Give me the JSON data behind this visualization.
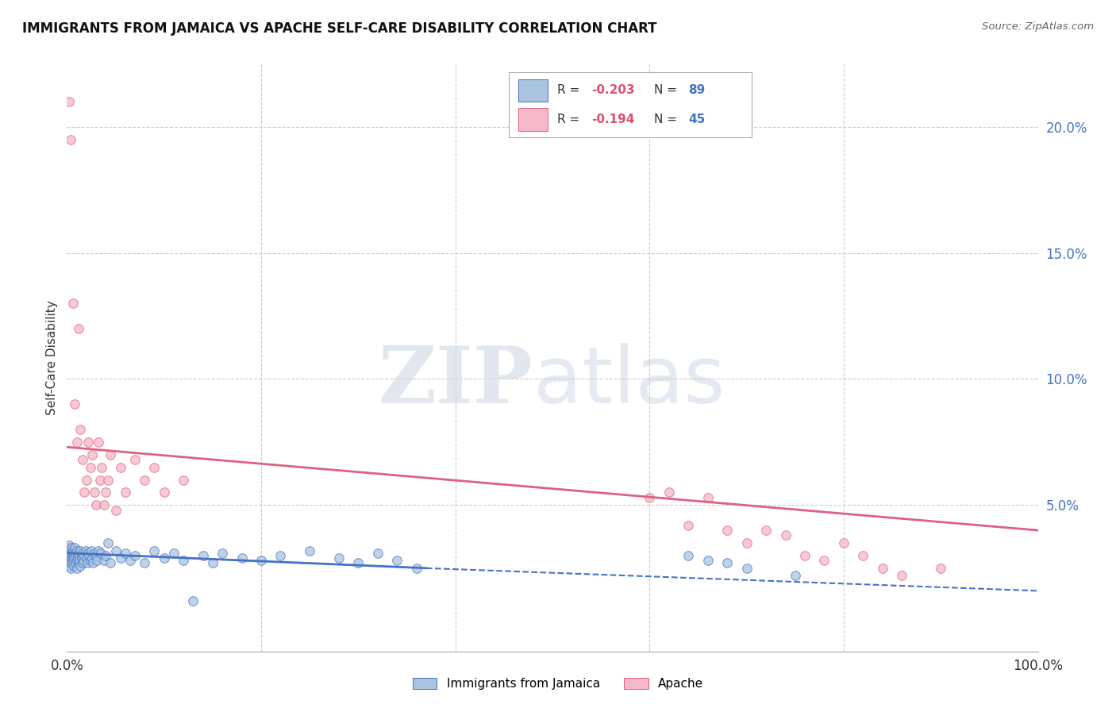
{
  "title": "IMMIGRANTS FROM JAMAICA VS APACHE SELF-CARE DISABILITY CORRELATION CHART",
  "source": "Source: ZipAtlas.com",
  "ylabel": "Self-Care Disability",
  "ytick_vals": [
    0.05,
    0.1,
    0.15,
    0.2
  ],
  "ytick_labels": [
    "5.0%",
    "10.0%",
    "15.0%",
    "20.0%"
  ],
  "series1_color": "#aac4e0",
  "series2_color": "#f5b8c8",
  "trendline1_color": "#4472c4",
  "trendline2_color": "#e06080",
  "background_color": "#ffffff",
  "xlim": [
    0.0,
    1.0
  ],
  "ylim": [
    -0.008,
    0.225
  ],
  "jamaica_x": [
    0.001,
    0.001,
    0.001,
    0.002,
    0.002,
    0.002,
    0.002,
    0.003,
    0.003,
    0.003,
    0.004,
    0.004,
    0.004,
    0.005,
    0.005,
    0.005,
    0.006,
    0.006,
    0.006,
    0.007,
    0.007,
    0.007,
    0.008,
    0.008,
    0.009,
    0.009,
    0.01,
    0.01,
    0.01,
    0.011,
    0.011,
    0.012,
    0.012,
    0.013,
    0.013,
    0.014,
    0.014,
    0.015,
    0.015,
    0.016,
    0.016,
    0.017,
    0.018,
    0.019,
    0.02,
    0.021,
    0.022,
    0.023,
    0.024,
    0.025,
    0.026,
    0.027,
    0.028,
    0.03,
    0.031,
    0.032,
    0.035,
    0.038,
    0.04,
    0.042,
    0.045,
    0.05,
    0.055,
    0.06,
    0.065,
    0.07,
    0.08,
    0.09,
    0.1,
    0.11,
    0.12,
    0.13,
    0.14,
    0.15,
    0.16,
    0.18,
    0.2,
    0.22,
    0.25,
    0.28,
    0.3,
    0.32,
    0.34,
    0.36,
    0.64,
    0.66,
    0.68,
    0.7,
    0.75
  ],
  "jamaica_y": [
    0.028,
    0.03,
    0.033,
    0.027,
    0.031,
    0.034,
    0.029,
    0.026,
    0.032,
    0.03,
    0.028,
    0.031,
    0.025,
    0.029,
    0.033,
    0.027,
    0.03,
    0.028,
    0.032,
    0.031,
    0.026,
    0.029,
    0.03,
    0.033,
    0.027,
    0.031,
    0.028,
    0.032,
    0.025,
    0.03,
    0.029,
    0.027,
    0.031,
    0.03,
    0.028,
    0.032,
    0.026,
    0.03,
    0.029,
    0.027,
    0.031,
    0.028,
    0.03,
    0.032,
    0.029,
    0.027,
    0.031,
    0.03,
    0.028,
    0.032,
    0.029,
    0.027,
    0.031,
    0.03,
    0.028,
    0.032,
    0.031,
    0.028,
    0.03,
    0.035,
    0.027,
    0.032,
    0.029,
    0.031,
    0.028,
    0.03,
    0.027,
    0.032,
    0.029,
    0.031,
    0.028,
    0.012,
    0.03,
    0.027,
    0.031,
    0.029,
    0.028,
    0.03,
    0.032,
    0.029,
    0.027,
    0.031,
    0.028,
    0.025,
    0.03,
    0.028,
    0.027,
    0.025,
    0.022
  ],
  "apache_x": [
    0.002,
    0.004,
    0.006,
    0.008,
    0.01,
    0.012,
    0.014,
    0.016,
    0.018,
    0.02,
    0.022,
    0.024,
    0.026,
    0.028,
    0.03,
    0.032,
    0.034,
    0.036,
    0.038,
    0.04,
    0.042,
    0.045,
    0.05,
    0.055,
    0.06,
    0.07,
    0.08,
    0.09,
    0.1,
    0.12,
    0.6,
    0.62,
    0.64,
    0.66,
    0.68,
    0.7,
    0.72,
    0.74,
    0.76,
    0.78,
    0.8,
    0.82,
    0.84,
    0.86,
    0.9
  ],
  "apache_y": [
    0.21,
    0.195,
    0.13,
    0.09,
    0.075,
    0.12,
    0.08,
    0.068,
    0.055,
    0.06,
    0.075,
    0.065,
    0.07,
    0.055,
    0.05,
    0.075,
    0.06,
    0.065,
    0.05,
    0.055,
    0.06,
    0.07,
    0.048,
    0.065,
    0.055,
    0.068,
    0.06,
    0.065,
    0.055,
    0.06,
    0.053,
    0.055,
    0.042,
    0.053,
    0.04,
    0.035,
    0.04,
    0.038,
    0.03,
    0.028,
    0.035,
    0.03,
    0.025,
    0.022,
    0.025
  ],
  "trend1_x0": 0.0,
  "trend1_x1": 0.37,
  "trend1_y0": 0.031,
  "trend1_y1": 0.025,
  "trend1_dash_x0": 0.37,
  "trend1_dash_x1": 1.0,
  "trend1_dash_y0": 0.025,
  "trend1_dash_y1": 0.016,
  "trend2_x0": 0.0,
  "trend2_x1": 1.0,
  "trend2_y0": 0.073,
  "trend2_y1": 0.04
}
